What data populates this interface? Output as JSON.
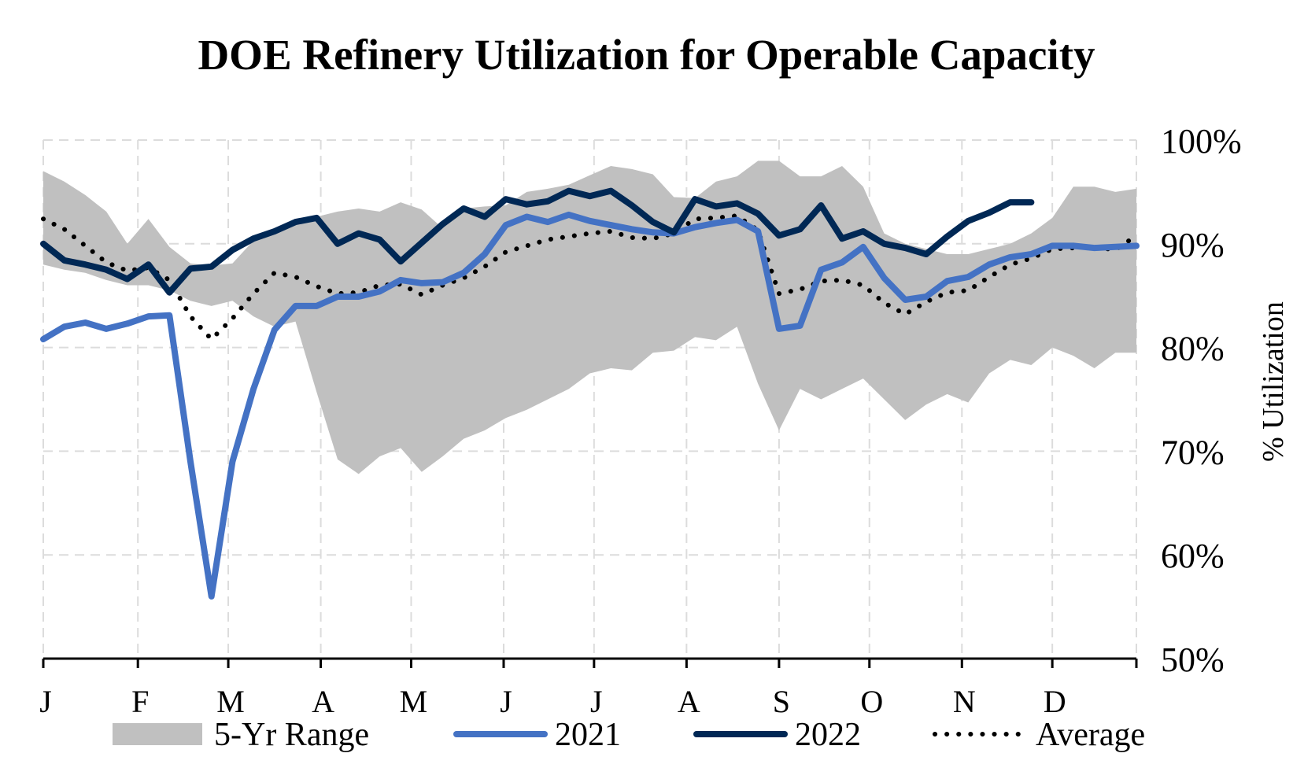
{
  "chart_data": {
    "type": "line",
    "title": "DOE Refinery Utilization for Operable Capacity",
    "ylabel": "% Utilization",
    "xlabel": "",
    "ylim": [
      50,
      100
    ],
    "y_axis_side": "right",
    "y_ticks": [
      "50%",
      "60%",
      "70%",
      "80%",
      "90%",
      "100%"
    ],
    "x_ticks": [
      "J",
      "F",
      "M",
      "A",
      "M",
      "J",
      "J",
      "A",
      "S",
      "O",
      "N",
      "D"
    ],
    "x_tick_weeks": [
      1,
      5.5,
      9.8,
      14.2,
      18.5,
      22.9,
      27.2,
      31.6,
      36.0,
      40.3,
      44.7,
      49.0
    ],
    "grid": true,
    "legend_placement": "bottom",
    "range_weeks": [
      1,
      2,
      3,
      4,
      5,
      6,
      7,
      8,
      9,
      10,
      11,
      12,
      13,
      14,
      15,
      16,
      17,
      18,
      19,
      20,
      21,
      22,
      23,
      24,
      25,
      26,
      27,
      28,
      29,
      30,
      31,
      32,
      33,
      34,
      35,
      36,
      37,
      38,
      39,
      40,
      41,
      42,
      43,
      44,
      45,
      46,
      47,
      48,
      49,
      50,
      51,
      52,
      53
    ],
    "range_high": [
      97.0,
      96.0,
      94.7,
      93.1,
      90.0,
      92.4,
      89.7,
      88.1,
      87.9,
      88.1,
      90.3,
      91.4,
      92.0,
      92.6,
      93.1,
      93.4,
      93.1,
      94.0,
      93.3,
      91.5,
      93.4,
      93.6,
      93.7,
      95.0,
      95.3,
      95.7,
      96.6,
      97.5,
      97.2,
      96.7,
      94.5,
      94.4,
      96.0,
      96.5,
      98.0,
      98.0,
      96.5,
      96.5,
      97.5,
      95.5,
      91.0,
      90.0,
      89.5,
      89.0,
      89.0,
      89.5,
      90.0,
      91.0,
      92.5,
      95.5,
      95.5,
      95.0,
      95.3
    ],
    "range_low": [
      88.0,
      87.5,
      87.2,
      86.5,
      86.0,
      86.0,
      85.5,
      84.5,
      84.0,
      84.5,
      83.0,
      82.0,
      82.5,
      75.7,
      69.2,
      67.8,
      69.5,
      70.3,
      68.0,
      69.5,
      71.2,
      72.0,
      73.2,
      74.0,
      75.0,
      76.0,
      77.5,
      78.0,
      77.8,
      79.5,
      79.7,
      81.0,
      80.7,
      82.0,
      76.5,
      72.0,
      76.0,
      75.0,
      76.0,
      77.0,
      75.0,
      73.0,
      74.5,
      75.5,
      74.7,
      77.5,
      78.8,
      78.3,
      80.0,
      79.2,
      78.0,
      79.5,
      79.5
    ],
    "series": [
      {
        "name": "2021",
        "x": [
          1,
          2,
          3,
          4,
          5,
          6,
          7,
          8,
          9,
          10,
          11,
          12,
          13,
          14,
          15,
          16,
          17,
          18,
          19,
          20,
          21,
          22,
          23,
          24,
          25,
          26,
          27,
          28,
          29,
          30,
          31,
          32,
          33,
          34,
          35,
          36,
          37,
          38,
          39,
          40,
          41,
          42,
          43,
          44,
          45,
          46,
          47,
          48,
          49,
          50,
          51,
          52,
          53
        ],
        "values": [
          80.8,
          82.0,
          82.4,
          81.8,
          82.3,
          83.0,
          83.1,
          69.0,
          56.0,
          69.0,
          76.0,
          81.7,
          84.0,
          84.0,
          84.9,
          84.9,
          85.4,
          86.5,
          86.2,
          86.3,
          87.2,
          89.0,
          91.8,
          92.6,
          92.1,
          92.8,
          92.2,
          91.8,
          91.4,
          91.1,
          91.0,
          91.6,
          92.0,
          92.3,
          91.2,
          81.8,
          82.1,
          87.5,
          88.2,
          89.7,
          86.7,
          84.6,
          84.9,
          86.4,
          86.8,
          88.0,
          88.7,
          89.0,
          89.8,
          89.8,
          89.6,
          89.7,
          89.8
        ]
      },
      {
        "name": "2022",
        "x": [
          1,
          2,
          3,
          4,
          5,
          6,
          7,
          8,
          9,
          10,
          11,
          12,
          13,
          14,
          15,
          16,
          17,
          18,
          19,
          20,
          21,
          22,
          23,
          24,
          25,
          26,
          27,
          28,
          29,
          30,
          31,
          32,
          33,
          34,
          35,
          36,
          37,
          38,
          39,
          40,
          41,
          42,
          43,
          44,
          45,
          46,
          47,
          48
        ],
        "values": [
          90.0,
          88.4,
          88.0,
          87.5,
          86.6,
          88.0,
          85.3,
          87.6,
          87.8,
          89.4,
          90.5,
          91.2,
          92.1,
          92.5,
          90.0,
          91.0,
          90.4,
          88.3,
          90.1,
          91.9,
          93.4,
          92.6,
          94.3,
          93.8,
          94.1,
          95.1,
          94.6,
          95.1,
          93.7,
          92.1,
          91.1,
          94.3,
          93.6,
          93.9,
          92.9,
          90.8,
          91.4,
          93.7,
          90.5,
          91.2,
          90.0,
          89.6,
          89.0,
          90.7,
          92.2,
          93.0,
          94.0,
          94.0
        ]
      },
      {
        "name": "Average",
        "x": [
          1,
          2,
          3,
          4,
          5,
          6,
          7,
          8,
          9,
          10,
          11,
          12,
          13,
          14,
          15,
          16,
          17,
          18,
          19,
          20,
          21,
          22,
          23,
          24,
          25,
          26,
          27,
          28,
          29,
          30,
          31,
          32,
          33,
          34,
          35,
          36,
          37,
          38,
          39,
          40,
          41,
          42,
          43,
          44,
          45,
          46,
          47,
          48,
          49,
          50,
          51,
          52,
          53
        ],
        "values": [
          92.4,
          91.4,
          89.8,
          88.2,
          87.4,
          87.7,
          86.5,
          83.0,
          80.8,
          82.8,
          85.2,
          87.2,
          86.8,
          85.9,
          85.2,
          85.3,
          86.0,
          86.1,
          85.1,
          86.0,
          86.7,
          87.8,
          89.2,
          89.8,
          90.4,
          90.7,
          91.0,
          91.2,
          90.6,
          90.5,
          91.0,
          92.4,
          92.5,
          92.7,
          91.3,
          85.2,
          85.6,
          86.4,
          86.5,
          86.0,
          84.3,
          83.2,
          84.4,
          85.3,
          85.5,
          86.8,
          88.0,
          88.6,
          89.5,
          89.6,
          89.7,
          89.4,
          90.8
        ]
      }
    ],
    "legend": [
      {
        "label": "5-Yr Range",
        "kind": "area",
        "color": "#c0c0c0"
      },
      {
        "label": "2021",
        "kind": "line",
        "color": "#4472c4"
      },
      {
        "label": "2022",
        "kind": "line",
        "color": "#002855"
      },
      {
        "label": "Average",
        "kind": "dotted",
        "color": "#000000"
      }
    ]
  }
}
